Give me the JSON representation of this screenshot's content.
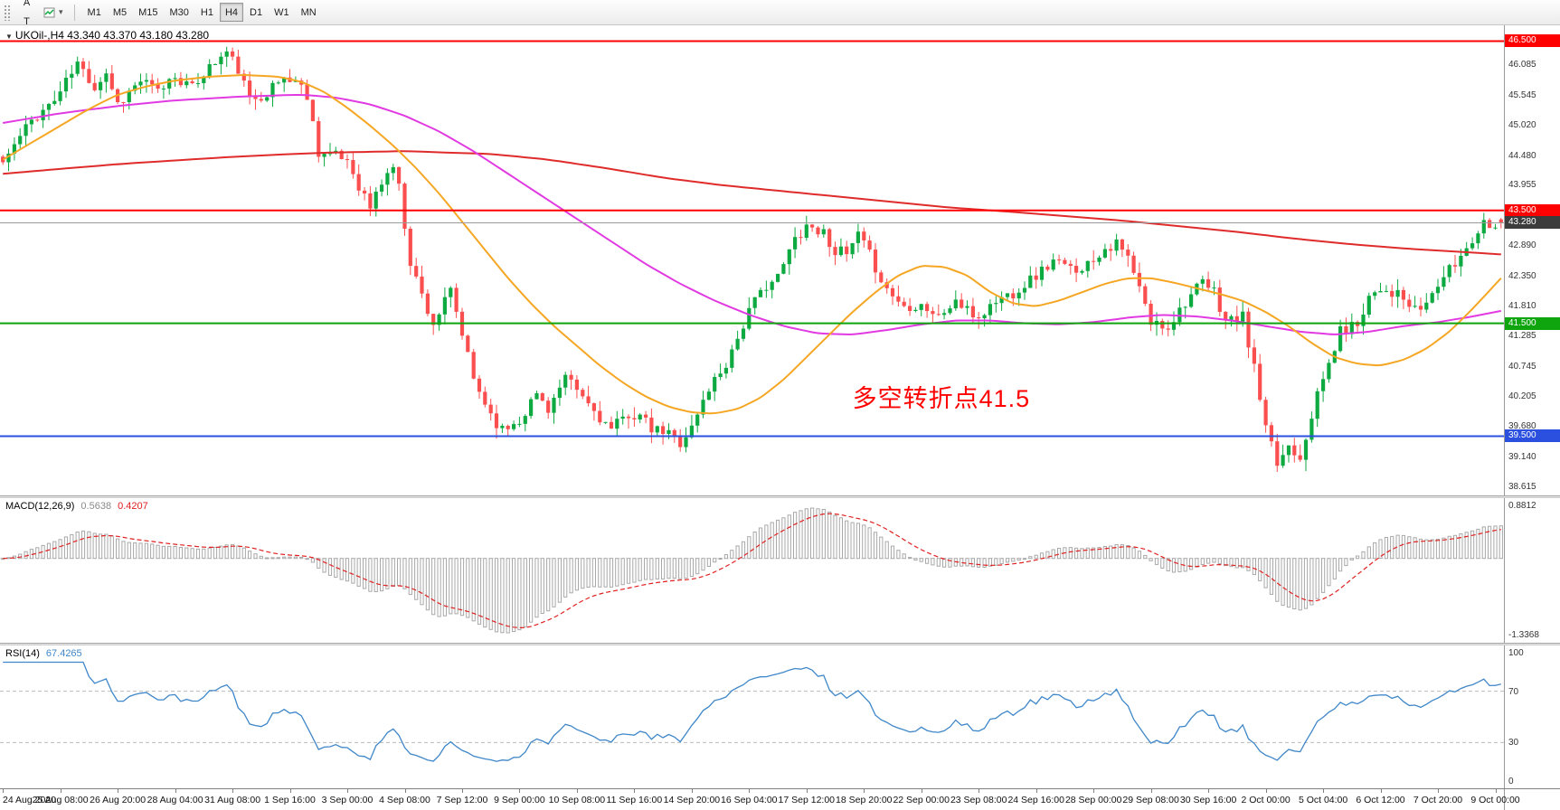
{
  "toolbar": {
    "left_buttons": [
      {
        "name": "annotation-arrow",
        "label": "A"
      },
      {
        "name": "text-tool",
        "label": "T"
      }
    ],
    "timeframes": [
      "M1",
      "M5",
      "M15",
      "M30",
      "H1",
      "H4",
      "D1",
      "W1",
      "MN"
    ],
    "selected_timeframe": "H4"
  },
  "chart_title": "UKOil-,H4 43.340 43.370 43.180 43.280",
  "annotation": {
    "text": "多空转折点41.5",
    "color": "#FF0000",
    "x_index": 148,
    "price": 40.52,
    "font_size": 27
  },
  "chart_data": {
    "type": "candlestick",
    "symbol": "UKOil-",
    "timeframe": "H4",
    "ohlc_last": {
      "open": 43.34,
      "high": 43.37,
      "low": 43.18,
      "close": 43.28
    },
    "up_color": "#0caa41",
    "down_color": "#fb4f4f",
    "price_axis": {
      "min": 38.45,
      "max": 46.78,
      "ticks": [
        46.085,
        45.545,
        45.02,
        44.48,
        43.955,
        43.43,
        42.89,
        42.35,
        41.81,
        41.285,
        40.745,
        40.205,
        39.68,
        39.14,
        38.615
      ]
    },
    "hlines": [
      {
        "price": 46.5,
        "label": "46.500",
        "color": "#ff0000",
        "width": 2
      },
      {
        "price": 43.5,
        "label": "43.500",
        "color": "#ff0000",
        "width": 2
      },
      {
        "price": 41.5,
        "label": "41.500",
        "color": "#0ea50e",
        "width": 2
      },
      {
        "price": 39.5,
        "label": "39.500",
        "color": "#2b50e0",
        "width": 2
      }
    ],
    "price_line": {
      "price": 43.28,
      "label": "43.280",
      "line_color": "#9a9a9a",
      "badge_bg": "#3c3c3c"
    },
    "candle_count": 262,
    "candles_per_label": 10,
    "seed": 11,
    "noise": 0.11,
    "wick": 0.2,
    "close_anchors": [
      [
        0,
        44.35
      ],
      [
        3,
        44.8
      ],
      [
        5,
        45.1
      ],
      [
        9,
        45.45
      ],
      [
        13,
        46.1
      ],
      [
        16,
        45.7
      ],
      [
        18,
        45.95
      ],
      [
        20,
        45.4
      ],
      [
        24,
        45.8
      ],
      [
        27,
        45.6
      ],
      [
        30,
        45.9
      ],
      [
        33,
        45.65
      ],
      [
        35,
        45.95
      ],
      [
        39,
        46.3
      ],
      [
        41,
        46.0
      ],
      [
        43,
        45.45
      ],
      [
        46,
        45.6
      ],
      [
        49,
        45.85
      ],
      [
        51,
        45.8
      ],
      [
        53,
        45.55
      ],
      [
        55,
        44.55
      ],
      [
        58,
        44.45
      ],
      [
        60,
        44.4
      ],
      [
        62,
        43.95
      ],
      [
        64,
        43.55
      ],
      [
        66,
        44.0
      ],
      [
        68,
        44.3
      ],
      [
        69,
        43.9
      ],
      [
        71,
        42.6
      ],
      [
        73,
        42.0
      ],
      [
        75,
        41.5
      ],
      [
        78,
        42.05
      ],
      [
        80,
        41.3
      ],
      [
        82,
        40.5
      ],
      [
        85,
        39.9
      ],
      [
        87,
        39.6
      ],
      [
        90,
        39.8
      ],
      [
        93,
        40.25
      ],
      [
        95,
        40.0
      ],
      [
        98,
        40.5
      ],
      [
        100,
        40.3
      ],
      [
        103,
        39.95
      ],
      [
        106,
        39.6
      ],
      [
        109,
        39.9
      ],
      [
        111,
        39.85
      ],
      [
        113,
        39.6
      ],
      [
        116,
        39.55
      ],
      [
        118,
        39.4
      ],
      [
        120,
        39.65
      ],
      [
        123,
        40.35
      ],
      [
        126,
        40.8
      ],
      [
        130,
        41.7
      ],
      [
        133,
        42.2
      ],
      [
        135,
        42.3
      ],
      [
        138,
        43.0
      ],
      [
        140,
        43.25
      ],
      [
        143,
        43.1
      ],
      [
        145,
        42.8
      ],
      [
        147,
        42.7
      ],
      [
        149,
        43.05
      ],
      [
        151,
        42.7
      ],
      [
        154,
        42.1
      ],
      [
        157,
        41.8
      ],
      [
        160,
        41.85
      ],
      [
        163,
        41.6
      ],
      [
        166,
        41.9
      ],
      [
        168,
        41.7
      ],
      [
        170,
        41.6
      ],
      [
        173,
        41.9
      ],
      [
        176,
        42.05
      ],
      [
        180,
        42.35
      ],
      [
        183,
        42.6
      ],
      [
        186,
        42.45
      ],
      [
        189,
        42.55
      ],
      [
        192,
        42.85
      ],
      [
        194,
        42.9
      ],
      [
        196,
        42.65
      ],
      [
        198,
        42.1
      ],
      [
        200,
        41.5
      ],
      [
        203,
        41.45
      ],
      [
        206,
        41.9
      ],
      [
        209,
        42.2
      ],
      [
        211,
        42.05
      ],
      [
        213,
        41.55
      ],
      [
        216,
        41.6
      ],
      [
        218,
        40.7
      ],
      [
        220,
        39.6
      ],
      [
        222,
        39.0
      ],
      [
        224,
        39.35
      ],
      [
        226,
        39.15
      ],
      [
        228,
        39.9
      ],
      [
        230,
        40.5
      ],
      [
        233,
        41.35
      ],
      [
        236,
        41.5
      ],
      [
        238,
        42.0
      ],
      [
        240,
        42.15
      ],
      [
        243,
        42.0
      ],
      [
        246,
        41.7
      ],
      [
        248,
        41.85
      ],
      [
        250,
        42.2
      ],
      [
        253,
        42.55
      ],
      [
        256,
        43.0
      ],
      [
        258,
        43.3
      ],
      [
        261,
        43.28
      ]
    ],
    "moving_averages": [
      {
        "name": "ma-slow-line",
        "color": "#e02b2b",
        "width": 2,
        "anchors": [
          [
            0,
            44.15
          ],
          [
            20,
            44.32
          ],
          [
            40,
            44.45
          ],
          [
            55,
            44.52
          ],
          [
            70,
            44.55
          ],
          [
            85,
            44.5
          ],
          [
            95,
            44.4
          ],
          [
            105,
            44.25
          ],
          [
            115,
            44.08
          ],
          [
            125,
            43.95
          ],
          [
            135,
            43.85
          ],
          [
            145,
            43.75
          ],
          [
            155,
            43.65
          ],
          [
            165,
            43.55
          ],
          [
            175,
            43.48
          ],
          [
            185,
            43.4
          ],
          [
            195,
            43.32
          ],
          [
            205,
            43.22
          ],
          [
            215,
            43.12
          ],
          [
            225,
            43.0
          ],
          [
            235,
            42.9
          ],
          [
            245,
            42.82
          ],
          [
            255,
            42.76
          ],
          [
            261,
            42.72
          ]
        ]
      },
      {
        "name": "ma-medium-line",
        "color": "#e23ae2",
        "width": 2,
        "anchors": [
          [
            0,
            45.05
          ],
          [
            10,
            45.22
          ],
          [
            20,
            45.35
          ],
          [
            30,
            45.45
          ],
          [
            42,
            45.52
          ],
          [
            52,
            45.55
          ],
          [
            58,
            45.5
          ],
          [
            64,
            45.38
          ],
          [
            70,
            45.18
          ],
          [
            76,
            44.9
          ],
          [
            82,
            44.55
          ],
          [
            88,
            44.15
          ],
          [
            94,
            43.75
          ],
          [
            100,
            43.35
          ],
          [
            106,
            42.95
          ],
          [
            112,
            42.55
          ],
          [
            118,
            42.2
          ],
          [
            124,
            41.9
          ],
          [
            130,
            41.65
          ],
          [
            136,
            41.45
          ],
          [
            142,
            41.32
          ],
          [
            148,
            41.3
          ],
          [
            154,
            41.38
          ],
          [
            160,
            41.48
          ],
          [
            166,
            41.55
          ],
          [
            172,
            41.55
          ],
          [
            178,
            41.5
          ],
          [
            184,
            41.48
          ],
          [
            190,
            41.52
          ],
          [
            196,
            41.6
          ],
          [
            202,
            41.65
          ],
          [
            208,
            41.62
          ],
          [
            214,
            41.55
          ],
          [
            220,
            41.45
          ],
          [
            226,
            41.35
          ],
          [
            232,
            41.3
          ],
          [
            238,
            41.35
          ],
          [
            244,
            41.45
          ],
          [
            250,
            41.52
          ],
          [
            256,
            41.62
          ],
          [
            261,
            41.72
          ]
        ]
      },
      {
        "name": "ma-fast-line",
        "color": "#f5a623",
        "width": 2,
        "anchors": [
          [
            0,
            44.4
          ],
          [
            5,
            44.7
          ],
          [
            10,
            45.0
          ],
          [
            15,
            45.3
          ],
          [
            20,
            45.55
          ],
          [
            25,
            45.7
          ],
          [
            30,
            45.8
          ],
          [
            36,
            45.87
          ],
          [
            42,
            45.9
          ],
          [
            48,
            45.87
          ],
          [
            52,
            45.78
          ],
          [
            56,
            45.6
          ],
          [
            60,
            45.32
          ],
          [
            64,
            45.0
          ],
          [
            68,
            44.65
          ],
          [
            72,
            44.25
          ],
          [
            76,
            43.8
          ],
          [
            80,
            43.3
          ],
          [
            84,
            42.8
          ],
          [
            88,
            42.3
          ],
          [
            92,
            41.85
          ],
          [
            96,
            41.45
          ],
          [
            100,
            41.1
          ],
          [
            104,
            40.75
          ],
          [
            108,
            40.45
          ],
          [
            112,
            40.2
          ],
          [
            116,
            40.02
          ],
          [
            120,
            39.92
          ],
          [
            124,
            39.9
          ],
          [
            128,
            39.98
          ],
          [
            132,
            40.18
          ],
          [
            136,
            40.5
          ],
          [
            140,
            40.9
          ],
          [
            144,
            41.3
          ],
          [
            148,
            41.7
          ],
          [
            152,
            42.05
          ],
          [
            156,
            42.35
          ],
          [
            160,
            42.52
          ],
          [
            164,
            42.5
          ],
          [
            168,
            42.35
          ],
          [
            172,
            42.05
          ],
          [
            176,
            41.85
          ],
          [
            180,
            41.8
          ],
          [
            184,
            41.9
          ],
          [
            188,
            42.05
          ],
          [
            192,
            42.2
          ],
          [
            196,
            42.3
          ],
          [
            200,
            42.3
          ],
          [
            204,
            42.22
          ],
          [
            208,
            42.12
          ],
          [
            212,
            42.02
          ],
          [
            216,
            41.9
          ],
          [
            220,
            41.7
          ],
          [
            224,
            41.45
          ],
          [
            228,
            41.15
          ],
          [
            232,
            40.9
          ],
          [
            236,
            40.78
          ],
          [
            240,
            40.75
          ],
          [
            244,
            40.85
          ],
          [
            248,
            41.05
          ],
          [
            252,
            41.35
          ],
          [
            256,
            41.75
          ],
          [
            261,
            42.3
          ]
        ]
      }
    ],
    "indicators": {
      "macd": {
        "label": "MACD(12,26,9)",
        "value_main": "0.5638",
        "value_signal": "0.4207",
        "fast": 12,
        "slow": 26,
        "signal": 9,
        "axis_top_label": "0.8812",
        "axis_bottom_label": "-1.3368",
        "histogram_color": "#a8a8a8",
        "signal_color": "#e02020"
      },
      "rsi": {
        "label": "RSI(14)",
        "value": "67.4265",
        "period": 14,
        "levels": [
          70,
          30
        ],
        "axis_labels": [
          100,
          70,
          30,
          0
        ],
        "line_color": "#3f87c9"
      }
    },
    "time_labels": [
      "24 Aug 2020",
      "25 Aug 08:00",
      "26 Aug 20:00",
      "28 Aug 04:00",
      "31 Aug 08:00",
      "1 Sep 16:00",
      "3 Sep 00:00",
      "4 Sep 08:00",
      "7 Sep 12:00",
      "9 Sep 00:00",
      "10 Sep 08:00",
      "11 Sep 16:00",
      "14 Sep 20:00",
      "16 Sep 04:00",
      "17 Sep 12:00",
      "18 Sep 20:00",
      "22 Sep 00:00",
      "23 Sep 08:00",
      "24 Sep 16:00",
      "28 Sep 00:00",
      "29 Sep 08:00",
      "30 Sep 16:00",
      "2 Oct 00:00",
      "5 Oct 04:00",
      "6 Oct 12:00",
      "7 Oct 20:00",
      "9 Oct 00:00"
    ]
  }
}
